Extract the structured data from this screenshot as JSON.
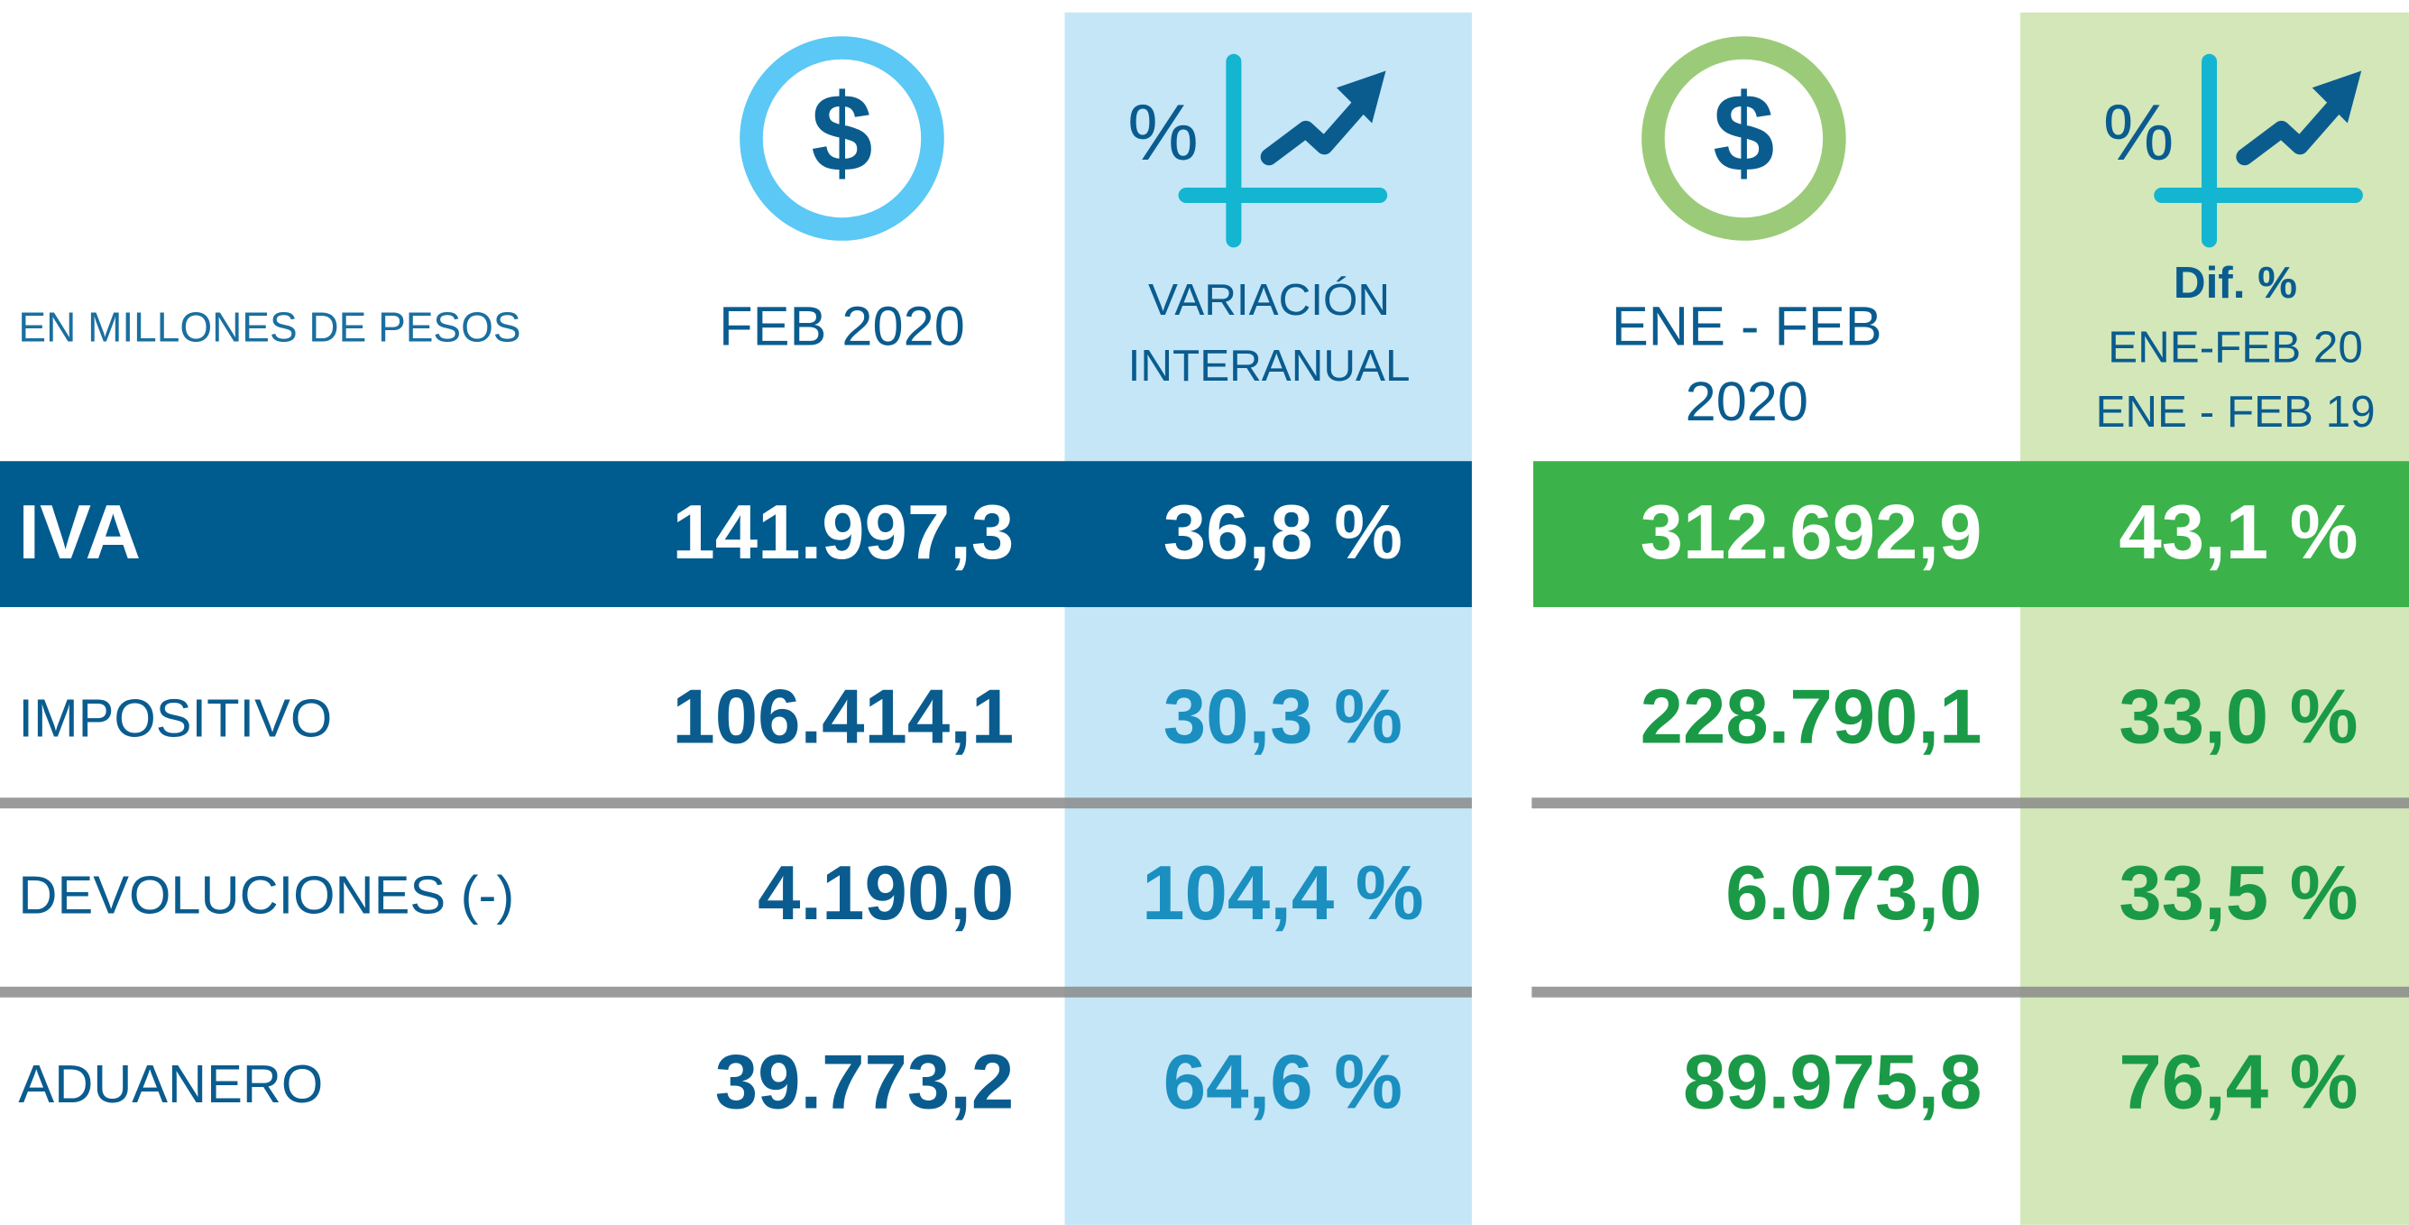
{
  "header": {
    "unit": "EN MILLONES DE PESOS",
    "icons": {
      "currency": "$",
      "percent": "%"
    },
    "columns": [
      {
        "lines": [
          "FEB 2020"
        ]
      },
      {
        "lines": [
          "VARIACIÓN",
          "INTERANUAL"
        ]
      },
      {
        "lines": [
          "ENE - FEB",
          "2020"
        ]
      },
      {
        "lines": [
          "Dif. %",
          "ENE-FEB 20",
          "ENE - FEB 19"
        ]
      }
    ]
  },
  "table": {
    "rows": [
      [
        "IVA",
        "141.997,3",
        "36,8 %",
        "312.692,9",
        "43,1 %"
      ],
      [
        "IMPOSITIVO",
        "106.414,1",
        "30,3 %",
        "228.790,1",
        "33,0 %"
      ],
      [
        "DEVOLUCIONES (-)",
        "4.190,0",
        "104,4 %",
        "6.073,0",
        "33,5 %"
      ],
      [
        "ADUANERO",
        "39.773,2",
        "64,6 %",
        "89.975,8",
        "76,4 %"
      ]
    ]
  }
}
